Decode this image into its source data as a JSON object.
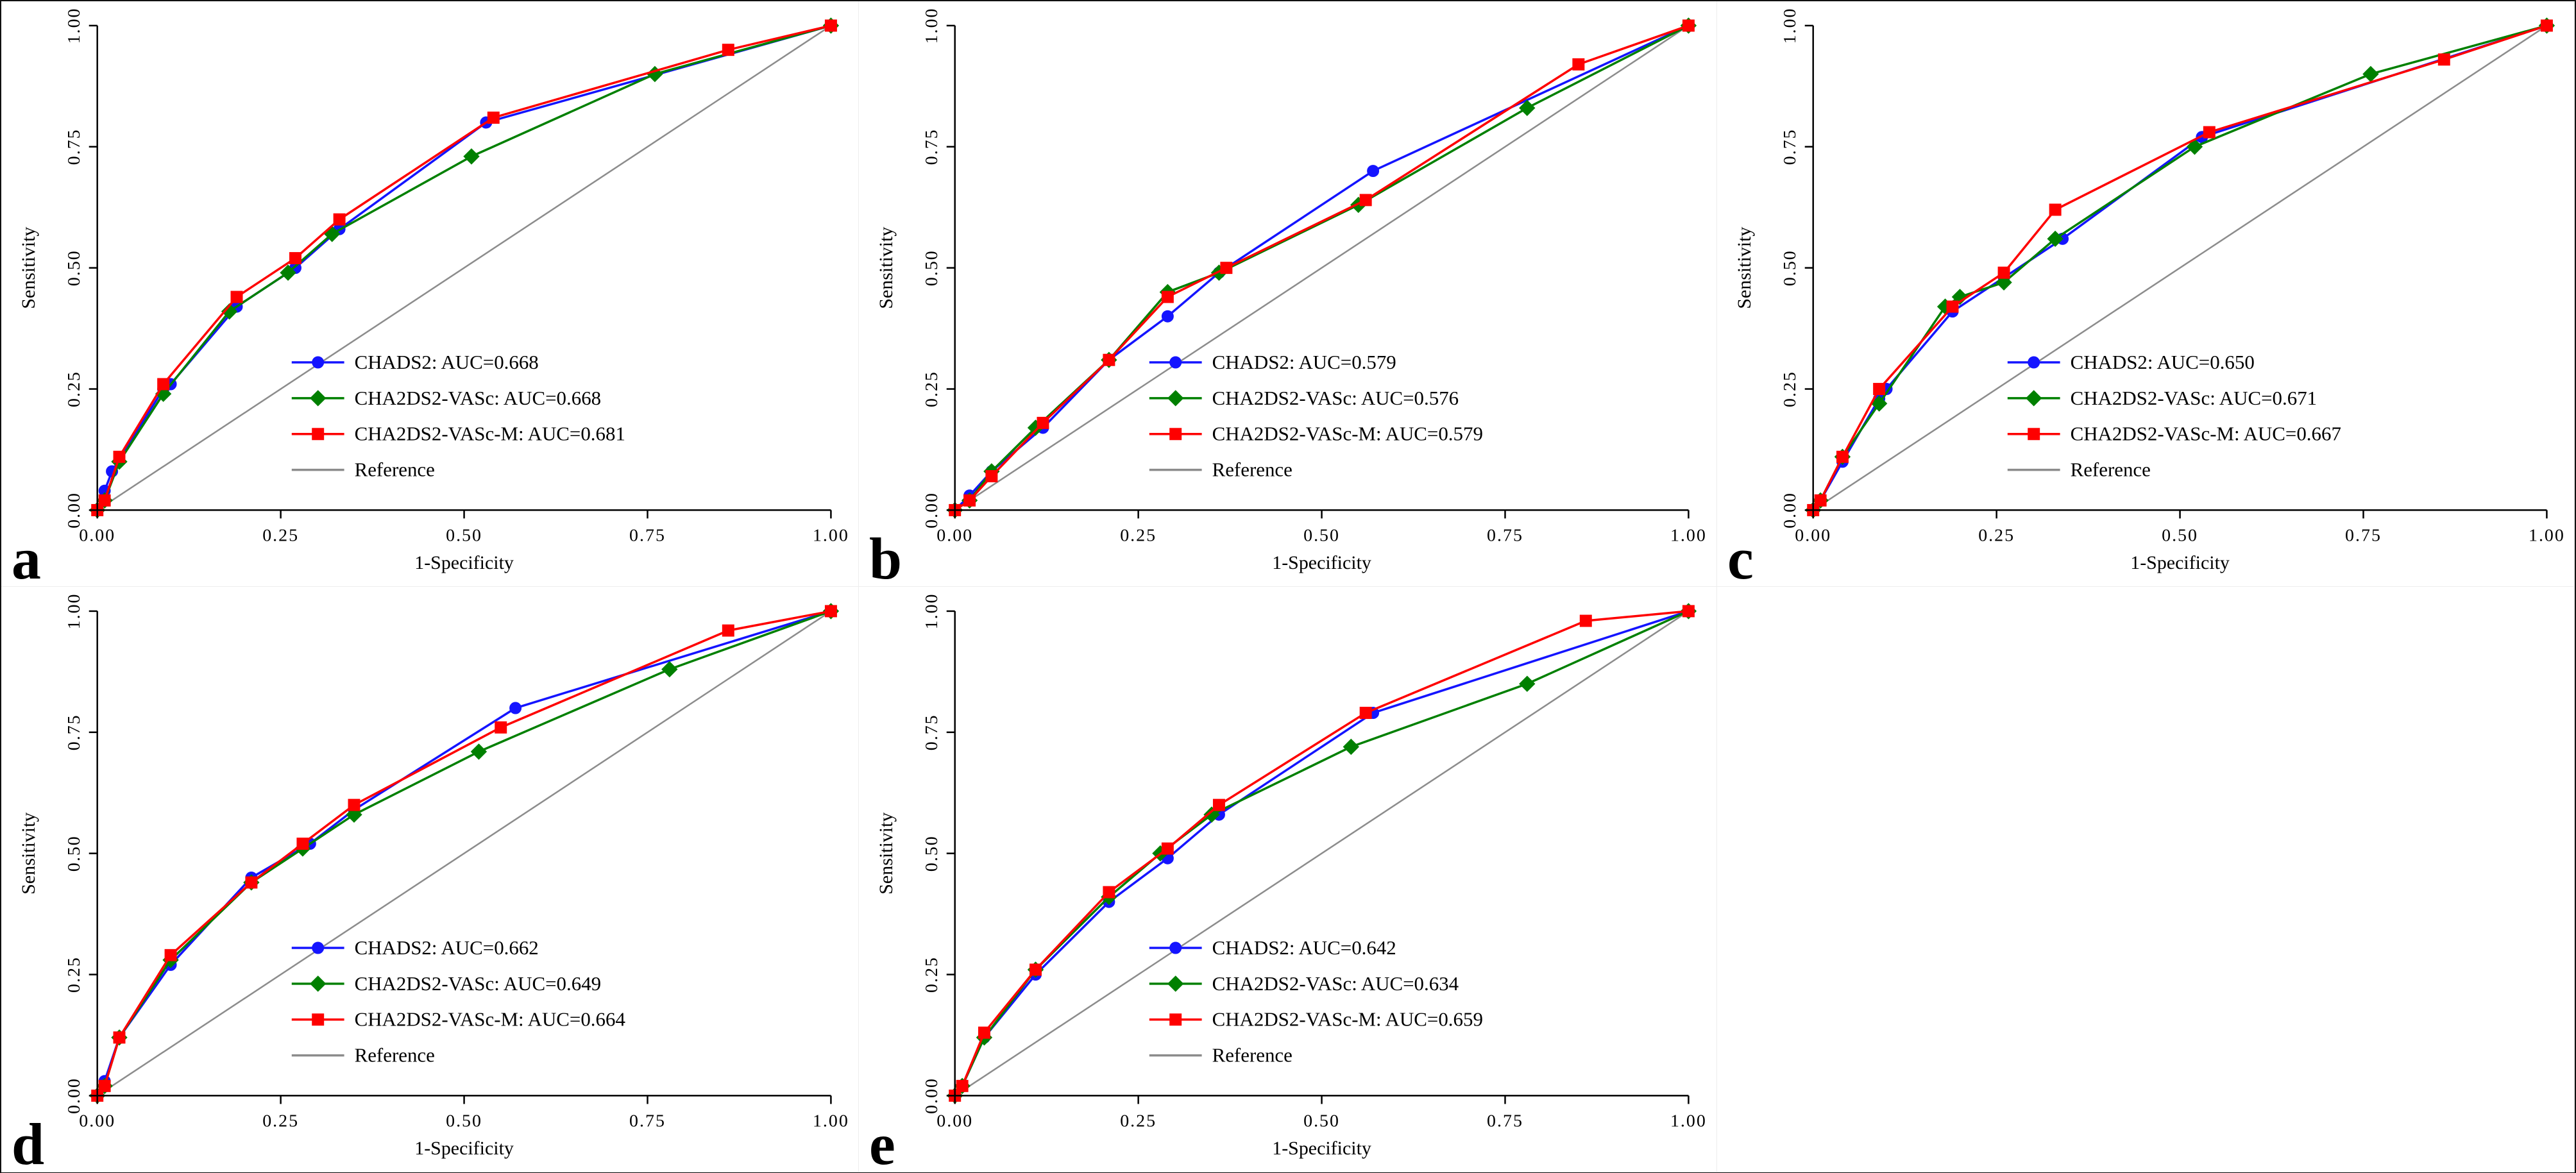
{
  "figure": {
    "colors": {
      "chads2": "#1414ff",
      "cha2ds2vasc": "#008000",
      "cha2ds2vascm": "#fe0000",
      "reference": "#8c8c8c",
      "axis": "#000000",
      "text": "#000000"
    },
    "axis": {
      "xlabel": "1-Specificity",
      "ylabel": "Sensitivity",
      "ticks": [
        0,
        0.25,
        0.5,
        0.75,
        1
      ],
      "tick_labels": [
        "0.00",
        "0.25",
        "0.50",
        "0.75",
        "1.00"
      ],
      "xlim": [
        0,
        1
      ],
      "ylim": [
        0,
        1
      ]
    },
    "reference_label": "Reference"
  },
  "chart_data": [
    {
      "id": "a",
      "panel_letter": "a",
      "type": "line",
      "xlabel": "1-Specificity",
      "ylabel": "Sensitivity",
      "xlim": [
        0,
        1
      ],
      "ylim": [
        0,
        1
      ],
      "legend": [
        {
          "label": "CHADS2: AUC=0.668",
          "marker": "circle",
          "color_key": "chads2"
        },
        {
          "label": "CHA2DS2-VASc: AUC=0.668",
          "marker": "diamond",
          "color_key": "cha2ds2vasc"
        },
        {
          "label": "CHA2DS2-VASc-M: AUC=0.681",
          "marker": "square",
          "color_key": "cha2ds2vascm"
        },
        {
          "label": "Reference",
          "marker": "none",
          "color_key": "reference"
        }
      ],
      "series": [
        {
          "name": "CHADS2",
          "auc": 0.668,
          "marker": "circle",
          "color_key": "chads2",
          "points": [
            [
              0,
              0
            ],
            [
              0.01,
              0.04
            ],
            [
              0.02,
              0.08
            ],
            [
              0.09,
              0.25
            ],
            [
              0.1,
              0.26
            ],
            [
              0.19,
              0.42
            ],
            [
              0.27,
              0.5
            ],
            [
              0.33,
              0.58
            ],
            [
              0.53,
              0.8
            ],
            [
              1,
              1
            ]
          ]
        },
        {
          "name": "CHA2DS2-VASc",
          "auc": 0.668,
          "marker": "diamond",
          "color_key": "cha2ds2vasc",
          "points": [
            [
              0,
              0
            ],
            [
              0.01,
              0.02
            ],
            [
              0.03,
              0.1
            ],
            [
              0.09,
              0.24
            ],
            [
              0.18,
              0.41
            ],
            [
              0.26,
              0.49
            ],
            [
              0.32,
              0.57
            ],
            [
              0.51,
              0.73
            ],
            [
              0.76,
              0.9
            ],
            [
              1,
              1
            ]
          ]
        },
        {
          "name": "CHA2DS2-VASc-M",
          "auc": 0.681,
          "marker": "square",
          "color_key": "cha2ds2vascm",
          "points": [
            [
              0,
              0
            ],
            [
              0.01,
              0.02
            ],
            [
              0.03,
              0.11
            ],
            [
              0.09,
              0.26
            ],
            [
              0.19,
              0.44
            ],
            [
              0.27,
              0.52
            ],
            [
              0.33,
              0.6
            ],
            [
              0.54,
              0.81
            ],
            [
              0.86,
              0.95
            ],
            [
              1,
              1
            ]
          ]
        }
      ],
      "reference": [
        [
          0,
          0
        ],
        [
          1,
          1
        ]
      ]
    },
    {
      "id": "b",
      "panel_letter": "b",
      "type": "line",
      "xlabel": "1-Specificity",
      "ylabel": "Sensitivity",
      "xlim": [
        0,
        1
      ],
      "ylim": [
        0,
        1
      ],
      "legend": [
        {
          "label": "CHADS2: AUC=0.579",
          "marker": "circle",
          "color_key": "chads2"
        },
        {
          "label": "CHA2DS2-VASc: AUC=0.576",
          "marker": "diamond",
          "color_key": "cha2ds2vasc"
        },
        {
          "label": "CHA2DS2-VASc-M: AUC=0.579",
          "marker": "square",
          "color_key": "cha2ds2vascm"
        },
        {
          "label": "Reference",
          "marker": "none",
          "color_key": "reference"
        }
      ],
      "series": [
        {
          "name": "CHADS2",
          "auc": 0.579,
          "marker": "circle",
          "color_key": "chads2",
          "points": [
            [
              0,
              0
            ],
            [
              0.02,
              0.03
            ],
            [
              0.05,
              0.08
            ],
            [
              0.12,
              0.17
            ],
            [
              0.21,
              0.31
            ],
            [
              0.29,
              0.4
            ],
            [
              0.36,
              0.49
            ],
            [
              0.57,
              0.7
            ],
            [
              1,
              1
            ]
          ]
        },
        {
          "name": "CHA2DS2-VASc",
          "auc": 0.576,
          "marker": "diamond",
          "color_key": "cha2ds2vasc",
          "points": [
            [
              0,
              0
            ],
            [
              0.02,
              0.02
            ],
            [
              0.05,
              0.08
            ],
            [
              0.11,
              0.17
            ],
            [
              0.21,
              0.31
            ],
            [
              0.29,
              0.45
            ],
            [
              0.36,
              0.49
            ],
            [
              0.55,
              0.63
            ],
            [
              0.78,
              0.83
            ],
            [
              1,
              1
            ]
          ]
        },
        {
          "name": "CHA2DS2-VASc-M",
          "auc": 0.579,
          "marker": "square",
          "color_key": "cha2ds2vascm",
          "points": [
            [
              0,
              0
            ],
            [
              0.02,
              0.02
            ],
            [
              0.05,
              0.07
            ],
            [
              0.12,
              0.18
            ],
            [
              0.21,
              0.31
            ],
            [
              0.29,
              0.44
            ],
            [
              0.37,
              0.5
            ],
            [
              0.56,
              0.64
            ],
            [
              0.85,
              0.92
            ],
            [
              1,
              1
            ]
          ]
        }
      ],
      "reference": [
        [
          0,
          0
        ],
        [
          1,
          1
        ]
      ]
    },
    {
      "id": "c",
      "panel_letter": "c",
      "type": "line",
      "xlabel": "1-Specificity",
      "ylabel": "Sensitivity",
      "xlim": [
        0,
        1
      ],
      "ylim": [
        0,
        1
      ],
      "legend": [
        {
          "label": "CHADS2: AUC=0.650",
          "marker": "circle",
          "color_key": "chads2"
        },
        {
          "label": "CHA2DS2-VASc: AUC=0.671",
          "marker": "diamond",
          "color_key": "cha2ds2vasc"
        },
        {
          "label": "CHA2DS2-VASc-M: AUC=0.667",
          "marker": "square",
          "color_key": "cha2ds2vascm"
        },
        {
          "label": "Reference",
          "marker": "none",
          "color_key": "reference"
        }
      ],
      "series": [
        {
          "name": "CHADS2",
          "auc": 0.65,
          "marker": "circle",
          "color_key": "chads2",
          "points": [
            [
              0,
              0
            ],
            [
              0.01,
              0.02
            ],
            [
              0.04,
              0.1
            ],
            [
              0.09,
              0.23
            ],
            [
              0.1,
              0.25
            ],
            [
              0.19,
              0.41
            ],
            [
              0.26,
              0.48
            ],
            [
              0.34,
              0.56
            ],
            [
              0.53,
              0.77
            ],
            [
              1,
              1
            ]
          ]
        },
        {
          "name": "CHA2DS2-VASc",
          "auc": 0.671,
          "marker": "diamond",
          "color_key": "cha2ds2vasc",
          "points": [
            [
              0,
              0
            ],
            [
              0.01,
              0.02
            ],
            [
              0.04,
              0.11
            ],
            [
              0.09,
              0.22
            ],
            [
              0.18,
              0.42
            ],
            [
              0.2,
              0.44
            ],
            [
              0.26,
              0.47
            ],
            [
              0.33,
              0.56
            ],
            [
              0.52,
              0.75
            ],
            [
              0.76,
              0.9
            ],
            [
              1,
              1
            ]
          ]
        },
        {
          "name": "CHA2DS2-VASc-M",
          "auc": 0.667,
          "marker": "square",
          "color_key": "cha2ds2vascm",
          "points": [
            [
              0,
              0
            ],
            [
              0.01,
              0.02
            ],
            [
              0.04,
              0.11
            ],
            [
              0.09,
              0.25
            ],
            [
              0.19,
              0.42
            ],
            [
              0.26,
              0.49
            ],
            [
              0.33,
              0.62
            ],
            [
              0.54,
              0.78
            ],
            [
              0.86,
              0.93
            ],
            [
              1,
              1
            ]
          ]
        }
      ],
      "reference": [
        [
          0,
          0
        ],
        [
          1,
          1
        ]
      ]
    },
    {
      "id": "d",
      "panel_letter": "d",
      "type": "line",
      "xlabel": "1-Specificity",
      "ylabel": "Sensitivity",
      "xlim": [
        0,
        1
      ],
      "ylim": [
        0,
        1
      ],
      "legend": [
        {
          "label": "CHADS2: AUC=0.662",
          "marker": "circle",
          "color_key": "chads2"
        },
        {
          "label": "CHA2DS2-VASc: AUC=0.649",
          "marker": "diamond",
          "color_key": "cha2ds2vasc"
        },
        {
          "label": "CHA2DS2-VASc-M: AUC=0.664",
          "marker": "square",
          "color_key": "cha2ds2vascm"
        },
        {
          "label": "Reference",
          "marker": "none",
          "color_key": "reference"
        }
      ],
      "series": [
        {
          "name": "CHADS2",
          "auc": 0.662,
          "marker": "circle",
          "color_key": "chads2",
          "points": [
            [
              0,
              0
            ],
            [
              0.01,
              0.03
            ],
            [
              0.03,
              0.12
            ],
            [
              0.1,
              0.27
            ],
            [
              0.21,
              0.45
            ],
            [
              0.29,
              0.52
            ],
            [
              0.35,
              0.59
            ],
            [
              0.57,
              0.8
            ],
            [
              1,
              1
            ]
          ]
        },
        {
          "name": "CHA2DS2-VASc",
          "auc": 0.649,
          "marker": "diamond",
          "color_key": "cha2ds2vasc",
          "points": [
            [
              0,
              0
            ],
            [
              0.01,
              0.02
            ],
            [
              0.03,
              0.12
            ],
            [
              0.1,
              0.28
            ],
            [
              0.21,
              0.44
            ],
            [
              0.28,
              0.51
            ],
            [
              0.35,
              0.58
            ],
            [
              0.52,
              0.71
            ],
            [
              0.78,
              0.88
            ],
            [
              1,
              1
            ]
          ]
        },
        {
          "name": "CHA2DS2-VASc-M",
          "auc": 0.664,
          "marker": "square",
          "color_key": "cha2ds2vascm",
          "points": [
            [
              0,
              0
            ],
            [
              0.01,
              0.02
            ],
            [
              0.03,
              0.12
            ],
            [
              0.1,
              0.29
            ],
            [
              0.21,
              0.44
            ],
            [
              0.28,
              0.52
            ],
            [
              0.35,
              0.6
            ],
            [
              0.55,
              0.76
            ],
            [
              0.86,
              0.96
            ],
            [
              1,
              1
            ]
          ]
        }
      ],
      "reference": [
        [
          0,
          0
        ],
        [
          1,
          1
        ]
      ]
    },
    {
      "id": "e",
      "panel_letter": "e",
      "type": "line",
      "xlabel": "1-Specificity",
      "ylabel": "Sensitivity",
      "xlim": [
        0,
        1
      ],
      "ylim": [
        0,
        1
      ],
      "legend": [
        {
          "label": "CHADS2: AUC=0.642",
          "marker": "circle",
          "color_key": "chads2"
        },
        {
          "label": "CHA2DS2-VASc: AUC=0.634",
          "marker": "diamond",
          "color_key": "cha2ds2vasc"
        },
        {
          "label": "CHA2DS2-VASc-M: AUC=0.659",
          "marker": "square",
          "color_key": "cha2ds2vascm"
        },
        {
          "label": "Reference",
          "marker": "none",
          "color_key": "reference"
        }
      ],
      "series": [
        {
          "name": "CHADS2",
          "auc": 0.642,
          "marker": "circle",
          "color_key": "chads2",
          "points": [
            [
              0,
              0
            ],
            [
              0.01,
              0.02
            ],
            [
              0.04,
              0.12
            ],
            [
              0.11,
              0.25
            ],
            [
              0.21,
              0.4
            ],
            [
              0.29,
              0.49
            ],
            [
              0.36,
              0.58
            ],
            [
              0.57,
              0.79
            ],
            [
              1,
              1
            ]
          ]
        },
        {
          "name": "CHA2DS2-VASc",
          "auc": 0.634,
          "marker": "diamond",
          "color_key": "cha2ds2vasc",
          "points": [
            [
              0,
              0
            ],
            [
              0.01,
              0.02
            ],
            [
              0.04,
              0.12
            ],
            [
              0.11,
              0.26
            ],
            [
              0.21,
              0.41
            ],
            [
              0.28,
              0.5
            ],
            [
              0.35,
              0.58
            ],
            [
              0.54,
              0.72
            ],
            [
              0.78,
              0.85
            ],
            [
              1,
              1
            ]
          ]
        },
        {
          "name": "CHA2DS2-VASc-M",
          "auc": 0.659,
          "marker": "square",
          "color_key": "cha2ds2vascm",
          "points": [
            [
              0,
              0
            ],
            [
              0.01,
              0.02
            ],
            [
              0.04,
              0.13
            ],
            [
              0.11,
              0.26
            ],
            [
              0.21,
              0.42
            ],
            [
              0.29,
              0.51
            ],
            [
              0.36,
              0.6
            ],
            [
              0.56,
              0.79
            ],
            [
              0.86,
              0.98
            ],
            [
              1,
              1
            ]
          ]
        }
      ],
      "reference": [
        [
          0,
          0
        ],
        [
          1,
          1
        ]
      ]
    }
  ]
}
